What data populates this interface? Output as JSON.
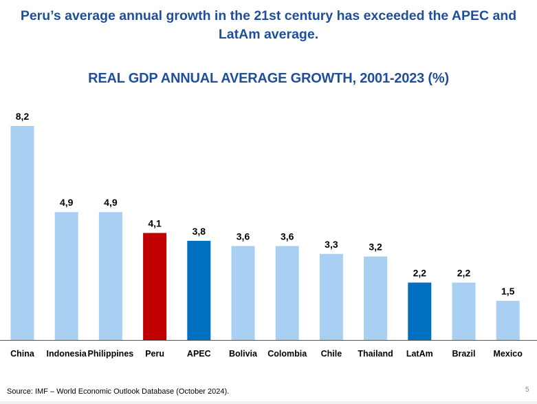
{
  "headline": {
    "line1": "Peru’s average annual growth in the 21st century has exceeded the APEC and",
    "line2": "LatAm average."
  },
  "footer": {
    "source": "Source: IMF – World Economic Outlook Database (October 2024).",
    "page_number": "5"
  },
  "colors": {
    "default_bar": "#a9cff2",
    "peru_bar": "#c00000",
    "highlight_bar": "#0070c0",
    "title": "#1f4e9a"
  },
  "chart_data": {
    "type": "bar",
    "title": "REAL GDP ANNUAL AVERAGE GROWTH, 2001-2023 (%)",
    "xlabel": "",
    "ylabel": "",
    "ylim": [
      0,
      8.2
    ],
    "grid": false,
    "categories": [
      "China",
      "Indonesia",
      "Philippines",
      "Peru",
      "APEC",
      "Bolivia",
      "Colombia",
      "Chile",
      "Thailand",
      "LatAm",
      "Brazil",
      "Mexico"
    ],
    "values": [
      8.2,
      4.9,
      4.9,
      4.1,
      3.8,
      3.6,
      3.6,
      3.3,
      3.2,
      2.2,
      2.2,
      1.5
    ],
    "value_labels": [
      "8,2",
      "4,9",
      "4,9",
      "4,1",
      "3,8",
      "3,6",
      "3,6",
      "3,3",
      "3,2",
      "2,2",
      "2,2",
      "1,5"
    ],
    "highlights": {
      "Peru": "peru",
      "APEC": "highlight",
      "LatAm": "highlight"
    }
  }
}
